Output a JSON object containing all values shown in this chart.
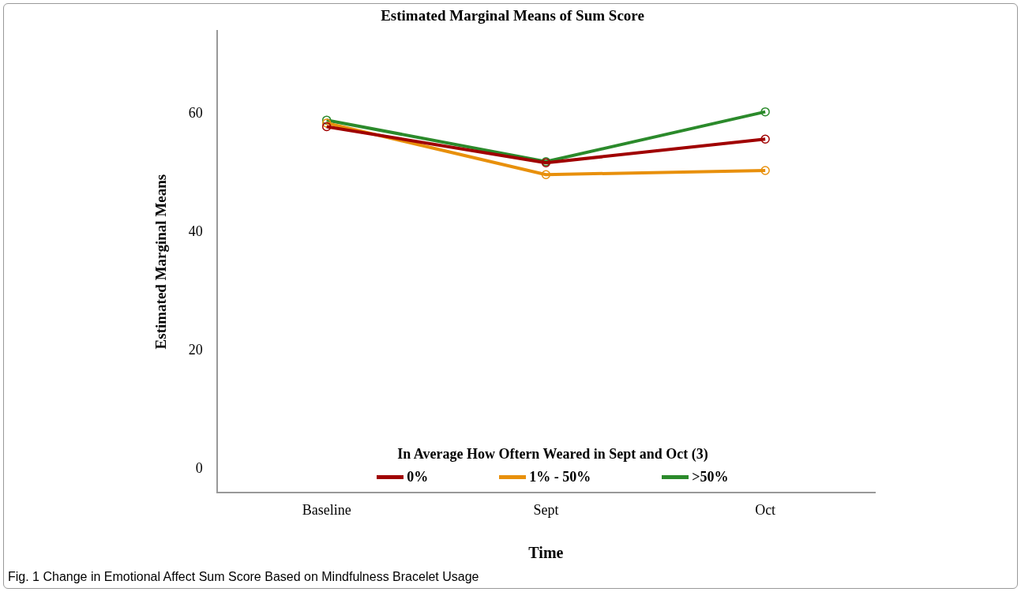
{
  "chart_data": {
    "type": "line",
    "title": "Estimated Marginal Means of Sum Score",
    "xlabel": "Time",
    "ylabel": "Estimated Marginal Means",
    "legend_title": "In Average How Oftern Weared in Sept and Oct (3)",
    "categories": [
      "Baseline",
      "Sept",
      "Oct"
    ],
    "series": [
      {
        "name": "0%",
        "color": "#a00000",
        "values": [
          57.8,
          51.7,
          55.7
        ]
      },
      {
        "name": "1% - 50%",
        "color": "#e8900c",
        "values": [
          58.4,
          49.7,
          50.4
        ]
      },
      {
        "name": ">50%",
        "color": "#2b8a2b",
        "values": [
          58.9,
          51.9,
          60.3
        ]
      }
    ],
    "ylim": [
      -4,
      74
    ],
    "yticks": [
      0,
      20,
      40,
      60
    ],
    "grid": false,
    "legend": "bottom",
    "marker": "circle",
    "line_style": "solid",
    "annotations": [
      "Fig. 1 Change in Emotional Affect Sum Score Based on Mindfulness Bracelet Usage"
    ]
  }
}
